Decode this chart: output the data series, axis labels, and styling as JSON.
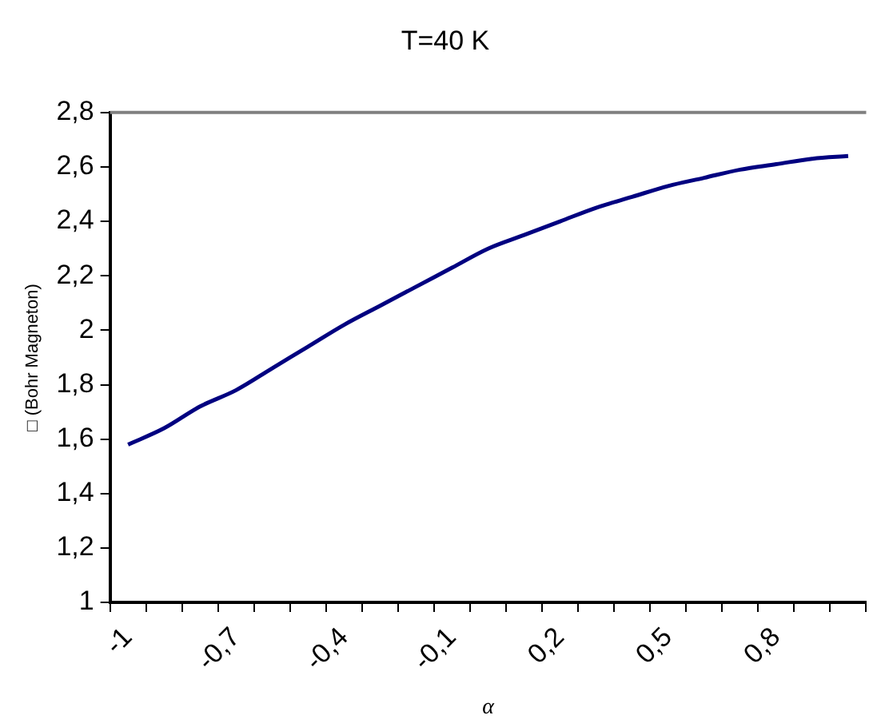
{
  "chart_data": {
    "type": "line",
    "title": "T=40 K",
    "xlabel": "α",
    "ylabel": "□ (Bohr Magneton)",
    "categories": [
      "-1",
      null,
      null,
      "-0,7",
      null,
      null,
      "-0,4",
      null,
      null,
      "-0,1",
      null,
      null,
      "0,2",
      null,
      null,
      "0,5",
      null,
      null,
      "0,8",
      null,
      null
    ],
    "series": [
      {
        "color": "#000080",
        "values": [
          1.58,
          1.64,
          1.72,
          1.78,
          1.86,
          1.94,
          2.02,
          2.09,
          2.16,
          2.23,
          2.3,
          2.35,
          2.4,
          2.45,
          2.49,
          2.53,
          2.56,
          2.59,
          2.61,
          2.63,
          2.64
        ]
      }
    ],
    "ylim": [
      1,
      2.8
    ],
    "yticks": [
      1,
      {
        "value": 1.2,
        "label": "1,2"
      },
      {
        "value": 1.4,
        "label": "1,4"
      },
      {
        "value": 1.6,
        "label": "1,6"
      },
      {
        "value": 1.8,
        "label": "1,8"
      },
      2,
      {
        "value": 2.2,
        "label": "2,2"
      },
      {
        "value": 2.4,
        "label": "2,4"
      },
      {
        "value": 2.6,
        "label": "2,6"
      },
      {
        "value": 2.8,
        "label": "2,8"
      }
    ],
    "marker": "none",
    "line_style": "solid"
  }
}
